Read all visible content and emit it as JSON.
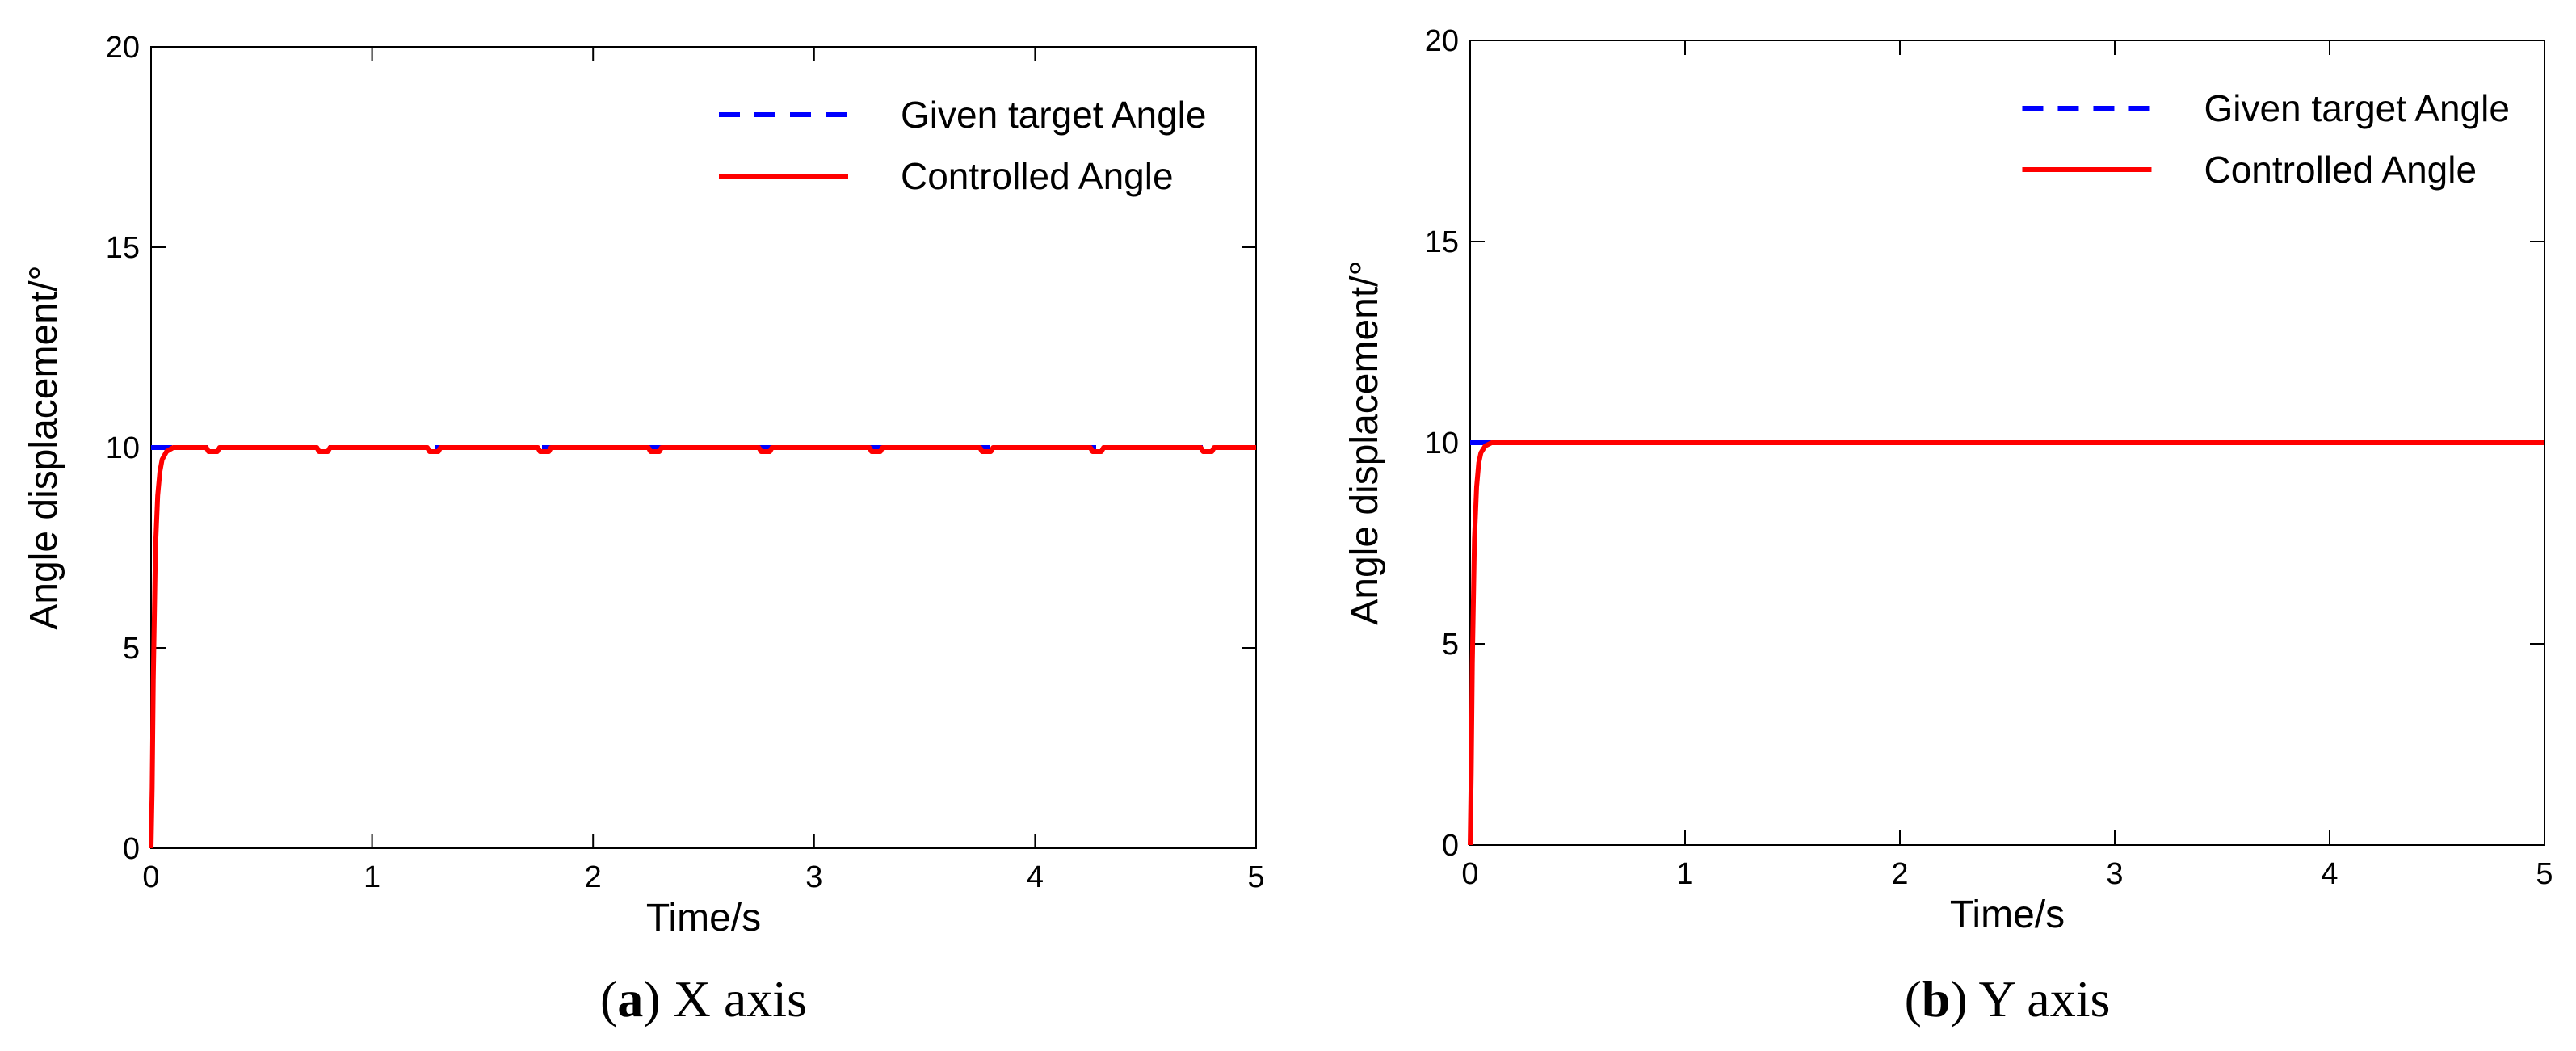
{
  "chart_data": [
    {
      "type": "line",
      "caption": {
        "tag": "a",
        "text": "X axis"
      },
      "xlabel": "Time/s",
      "ylabel": "Angle displacement/°",
      "xlim": [
        0,
        5
      ],
      "ylim": [
        0,
        20
      ],
      "xticks": [
        0,
        1,
        2,
        3,
        4,
        5
      ],
      "yticks": [
        0,
        5,
        10,
        15,
        20
      ],
      "grid": false,
      "legend_position": "top-right",
      "series": [
        {
          "name": "Given target Angle",
          "color": "#0000ff",
          "style": "dashed",
          "x": [
            0,
            5
          ],
          "y": [
            10,
            10
          ]
        },
        {
          "name": "Controlled Angle",
          "color": "#ff0000",
          "style": "solid",
          "x": [
            0,
            0.005,
            0.01,
            0.02,
            0.03,
            0.04,
            0.05,
            0.07,
            0.1,
            0.25,
            0.26,
            0.3,
            0.31,
            0.75,
            0.76,
            0.8,
            0.81,
            1.25,
            1.26,
            1.3,
            1.31,
            1.75,
            1.76,
            1.8,
            1.81,
            2.25,
            2.26,
            2.3,
            2.31,
            2.75,
            2.76,
            2.8,
            2.81,
            3.25,
            3.26,
            3.3,
            3.31,
            3.75,
            3.76,
            3.8,
            3.81,
            4.25,
            4.26,
            4.3,
            4.31,
            4.75,
            4.76,
            4.8,
            4.81,
            5
          ],
          "y": [
            0,
            1.5,
            4.2,
            7.5,
            8.8,
            9.4,
            9.7,
            9.9,
            10,
            10,
            9.9,
            9.9,
            10,
            10,
            9.9,
            9.9,
            10,
            10,
            9.9,
            9.9,
            10,
            10,
            9.9,
            9.9,
            10,
            10,
            9.9,
            9.9,
            10,
            10,
            9.9,
            9.9,
            10,
            10,
            9.9,
            9.9,
            10,
            10,
            9.9,
            9.9,
            10,
            10,
            9.9,
            9.9,
            10,
            10,
            9.9,
            9.9,
            10,
            10
          ]
        }
      ]
    },
    {
      "type": "line",
      "caption": {
        "tag": "b",
        "text": "Y axis"
      },
      "xlabel": "Time/s",
      "ylabel": "Angle displacement/°",
      "xlim": [
        0,
        5
      ],
      "ylim": [
        0,
        20
      ],
      "xticks": [
        0,
        1,
        2,
        3,
        4,
        5
      ],
      "yticks": [
        0,
        5,
        10,
        15,
        20
      ],
      "grid": false,
      "legend_position": "top-right",
      "series": [
        {
          "name": "Given target Angle",
          "color": "#0000ff",
          "style": "dashed",
          "x": [
            0,
            5
          ],
          "y": [
            10,
            10
          ]
        },
        {
          "name": "Controlled Angle",
          "color": "#ff0000",
          "style": "solid",
          "x": [
            0,
            0.005,
            0.01,
            0.02,
            0.03,
            0.04,
            0.05,
            0.07,
            0.1,
            5
          ],
          "y": [
            0,
            1.8,
            4.5,
            7.6,
            8.9,
            9.5,
            9.75,
            9.92,
            10,
            10
          ]
        }
      ]
    }
  ]
}
